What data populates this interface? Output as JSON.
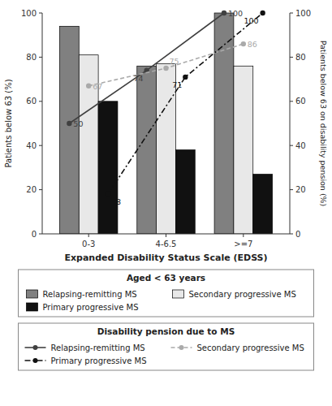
{
  "chart_data": {
    "type": "bar",
    "categories": [
      "0-3",
      "4-6.5",
      ">=7"
    ],
    "x_label": "Expanded Disability Status Scale (EDSS)",
    "y_label": "Patients below 63 (%)",
    "y2_label": "Patients below 63 on disability pension (%)",
    "ylim": [
      0,
      100
    ],
    "yticks": [
      0,
      20,
      40,
      60,
      80,
      100
    ],
    "y2lim": [
      0,
      100
    ],
    "y2ticks": [
      0,
      20,
      40,
      60,
      80,
      100
    ],
    "grid": false,
    "legend": "bottom",
    "legend_titles": [
      "Aged < 63 years",
      "Disability pension due to MS"
    ],
    "series": [
      {
        "name": "Relapsing-remitting MS",
        "type": "bar",
        "color": "#808080",
        "values": [
          94,
          76,
          100
        ]
      },
      {
        "name": "Secondary progressive MS",
        "type": "bar",
        "color": "#e8e8e8",
        "values": [
          81,
          77,
          76
        ]
      },
      {
        "name": "Primary progressive MS",
        "type": "bar",
        "color": "#111111",
        "values": [
          60,
          38,
          27
        ]
      },
      {
        "name": "Relapsing-remitting MS",
        "type": "line",
        "axis": "y2",
        "color": "#404040",
        "marker": "circle",
        "line_style": "solid",
        "data_labels": true,
        "values": [
          50,
          74,
          100
        ]
      },
      {
        "name": "Secondary progressive MS",
        "type": "line",
        "axis": "y2",
        "color": "#aaaaaa",
        "marker": "circle",
        "line_style": "dashed",
        "data_labels": true,
        "values": [
          67,
          75,
          86
        ]
      },
      {
        "name": "Primary progressive MS",
        "type": "line",
        "axis": "y2",
        "color": "#111111",
        "marker": "circle",
        "line_style": "dashdot",
        "data_labels": true,
        "values": [
          18,
          71,
          100
        ]
      }
    ]
  }
}
